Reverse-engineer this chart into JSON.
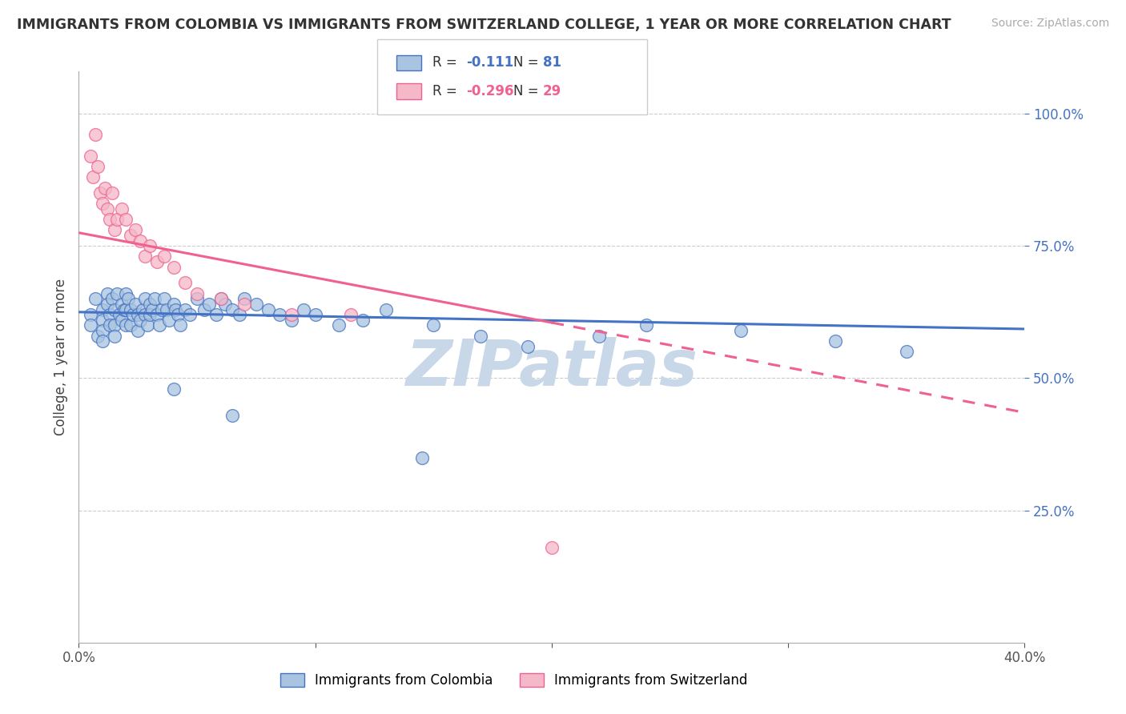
{
  "title": "IMMIGRANTS FROM COLOMBIA VS IMMIGRANTS FROM SWITZERLAND COLLEGE, 1 YEAR OR MORE CORRELATION CHART",
  "source": "Source: ZipAtlas.com",
  "ylabel_label": "College, 1 year or more",
  "y_ticks": [
    0.25,
    0.5,
    0.75,
    1.0
  ],
  "y_tick_labels": [
    "25.0%",
    "50.0%",
    "75.0%",
    "100.0%"
  ],
  "legend_label_colombia": "Immigrants from Colombia",
  "legend_label_switzerland": "Immigrants from Switzerland",
  "colombia_color": "#a8c4e0",
  "switzerland_color": "#f4b8c8",
  "colombia_line_color": "#4472c4",
  "switzerland_line_color": "#f06090",
  "watermark": "ZIPatlas",
  "watermark_color": "#c8d8e8",
  "colombia_R": -0.111,
  "switzerland_R": -0.296,
  "colombia_N": 81,
  "switzerland_N": 29,
  "colombia_R_str": "-0.111",
  "switzerland_R_str": "-0.296",
  "colombia_x": [
    0.005,
    0.005,
    0.007,
    0.008,
    0.01,
    0.01,
    0.01,
    0.01,
    0.012,
    0.012,
    0.013,
    0.013,
    0.014,
    0.015,
    0.015,
    0.015,
    0.016,
    0.017,
    0.018,
    0.018,
    0.019,
    0.02,
    0.02,
    0.02,
    0.021,
    0.022,
    0.022,
    0.023,
    0.024,
    0.025,
    0.025,
    0.026,
    0.027,
    0.028,
    0.028,
    0.029,
    0.03,
    0.03,
    0.031,
    0.032,
    0.033,
    0.034,
    0.035,
    0.036,
    0.037,
    0.038,
    0.04,
    0.041,
    0.042,
    0.043,
    0.045,
    0.047,
    0.05,
    0.053,
    0.055,
    0.058,
    0.06,
    0.062,
    0.065,
    0.068,
    0.07,
    0.075,
    0.08,
    0.085,
    0.09,
    0.095,
    0.1,
    0.11,
    0.12,
    0.13,
    0.15,
    0.17,
    0.19,
    0.22,
    0.24,
    0.28,
    0.32,
    0.35,
    0.145,
    0.065,
    0.04
  ],
  "colombia_y": [
    0.62,
    0.6,
    0.65,
    0.58,
    0.63,
    0.61,
    0.59,
    0.57,
    0.66,
    0.64,
    0.62,
    0.6,
    0.65,
    0.63,
    0.6,
    0.58,
    0.66,
    0.62,
    0.64,
    0.61,
    0.63,
    0.66,
    0.63,
    0.6,
    0.65,
    0.63,
    0.6,
    0.62,
    0.64,
    0.62,
    0.59,
    0.61,
    0.63,
    0.65,
    0.62,
    0.6,
    0.64,
    0.62,
    0.63,
    0.65,
    0.62,
    0.6,
    0.63,
    0.65,
    0.63,
    0.61,
    0.64,
    0.63,
    0.62,
    0.6,
    0.63,
    0.62,
    0.65,
    0.63,
    0.64,
    0.62,
    0.65,
    0.64,
    0.63,
    0.62,
    0.65,
    0.64,
    0.63,
    0.62,
    0.61,
    0.63,
    0.62,
    0.6,
    0.61,
    0.63,
    0.6,
    0.58,
    0.56,
    0.58,
    0.6,
    0.59,
    0.57,
    0.55,
    0.35,
    0.43,
    0.48
  ],
  "switzerland_x": [
    0.005,
    0.006,
    0.007,
    0.008,
    0.009,
    0.01,
    0.011,
    0.012,
    0.013,
    0.014,
    0.015,
    0.016,
    0.018,
    0.02,
    0.022,
    0.024,
    0.026,
    0.028,
    0.03,
    0.033,
    0.036,
    0.04,
    0.045,
    0.05,
    0.06,
    0.07,
    0.09,
    0.115,
    0.2
  ],
  "switzerland_y": [
    0.92,
    0.88,
    0.96,
    0.9,
    0.85,
    0.83,
    0.86,
    0.82,
    0.8,
    0.85,
    0.78,
    0.8,
    0.82,
    0.8,
    0.77,
    0.78,
    0.76,
    0.73,
    0.75,
    0.72,
    0.73,
    0.71,
    0.68,
    0.66,
    0.65,
    0.64,
    0.62,
    0.62,
    0.18
  ]
}
